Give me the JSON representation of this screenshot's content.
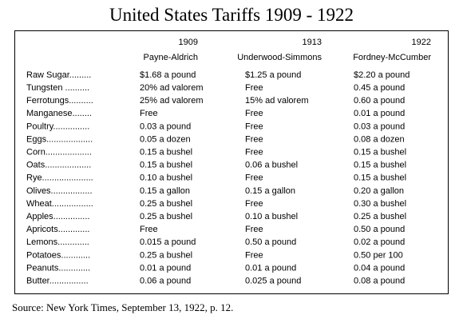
{
  "title": "United States Tariffs 1909 - 1922",
  "table": {
    "columns": [
      {
        "year": "1909",
        "name": "Payne-Aldrich"
      },
      {
        "year": "1913",
        "name": "Underwood-Simmons"
      },
      {
        "year": "1922",
        "name": "Fordney-McCumber"
      }
    ],
    "rows": [
      [
        "Raw Sugar.........",
        "$1.68 a pound",
        "$1.25 a pound",
        "$2.20 a pound"
      ],
      [
        "Tungsten ..........",
        "20% ad valorem",
        "Free",
        "0.45 a pound"
      ],
      [
        "Ferrotungs..........",
        "25% ad valorem",
        "15% ad valorem",
        "0.60 a pound"
      ],
      [
        "Manganese........",
        "Free",
        "Free",
        "0.01 a pound"
      ],
      [
        "Poultry...............",
        "0.03 a pound",
        "Free",
        "0.03 a pound"
      ],
      [
        "Eggs...................",
        "0.05 a dozen",
        "Free",
        "0.08 a dozen"
      ],
      [
        "Corn...................",
        "0.15 a bushel",
        "Free",
        "0.15 a bushel"
      ],
      [
        "Oats...................",
        "0.15 a bushel",
        "0.06 a bushel",
        "0.15 a bushel"
      ],
      [
        "Rye.....................",
        "0.10 a bushel",
        "Free",
        "0.15 a bushel"
      ],
      [
        "Olives.................",
        "0.15 a gallon",
        "0.15 a gallon",
        "0.20 a gallon"
      ],
      [
        "Wheat.................",
        "0.25 a bushel",
        "Free",
        "0.30 a bushel"
      ],
      [
        "Apples...............",
        "0.25 a bushel",
        "0.10 a bushel",
        "0.25 a bushel"
      ],
      [
        "Apricots.............",
        "Free",
        "Free",
        "0.50 a pound"
      ],
      [
        "Lemons.............",
        "0.015 a pound",
        "0.50 a pound",
        "0.02 a pound"
      ],
      [
        "Potatoes............",
        "0.25 a bushel",
        "Free",
        "0.50 per 100"
      ],
      [
        "Peanuts.............",
        "0.01 a pound",
        "0.01 a pound",
        "0.04 a pound"
      ],
      [
        "Butter................",
        "0.06 a pound",
        "0.025 a pound",
        "0.08 a pound"
      ]
    ]
  },
  "source": "Source: New York Times, September 13, 1922, p. 12."
}
